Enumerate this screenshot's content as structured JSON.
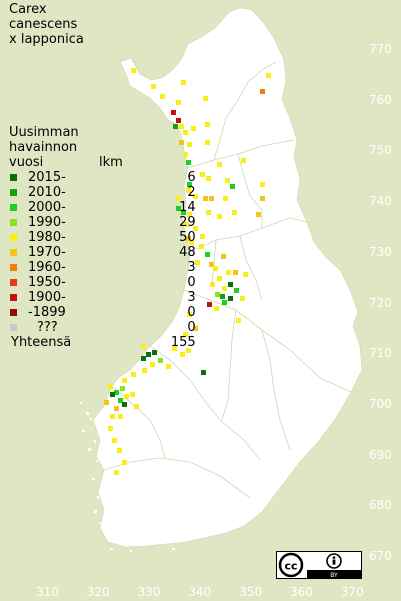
{
  "title": {
    "line1": "Carex",
    "line2": "canescens",
    "line3": "x lapponica"
  },
  "legend": {
    "header1": "Uusimman",
    "header2": "havainnon",
    "header3": "vuosi",
    "count_header": "lkm",
    "rows": [
      {
        "label": "2015-",
        "count": "6",
        "color": "#0b6e0b"
      },
      {
        "label": "2010-",
        "count": "2",
        "color": "#12a312"
      },
      {
        "label": "2000-",
        "count": "14",
        "color": "#1ecf1e"
      },
      {
        "label": "1990-",
        "count": "29",
        "color": "#8fe01f"
      },
      {
        "label": "1980-",
        "count": "50",
        "color": "#f7ef18"
      },
      {
        "label": "1970-",
        "count": "48",
        "color": "#f5c31a"
      },
      {
        "label": "1960-",
        "count": "3",
        "color": "#f07f12"
      },
      {
        "label": "1950-",
        "count": "0",
        "color": "#e43b0f"
      },
      {
        "label": "1900-",
        "count": "3",
        "color": "#c4120c"
      },
      {
        "label": "-1899",
        "count": "0",
        "color": "#8c0f0a"
      },
      {
        "label": "???",
        "count": "0",
        "color": "#c8c8c8"
      }
    ],
    "total_label": "Yhteensä",
    "total_count": "155"
  },
  "axes": {
    "y_ticks": [
      "770",
      "760",
      "750",
      "740",
      "730",
      "720",
      "710",
      "700",
      "690",
      "680",
      "670"
    ],
    "x_ticks": [
      "310",
      "320",
      "330",
      "340",
      "350",
      "360",
      "370"
    ]
  },
  "license": {
    "icon": "cc-by-icon",
    "by_text": "BY"
  }
}
